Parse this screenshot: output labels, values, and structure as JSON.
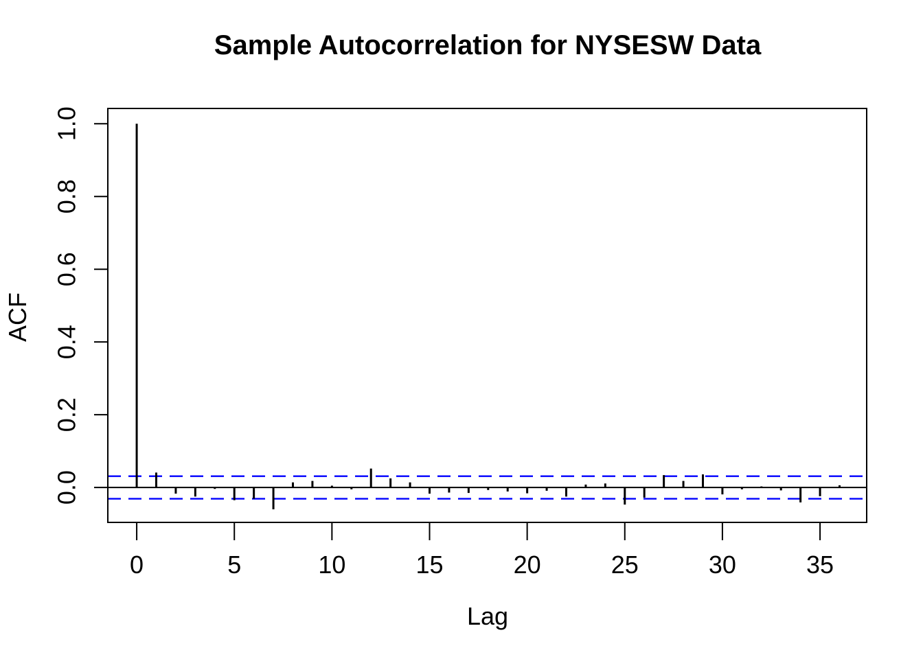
{
  "chart_data": {
    "type": "stem",
    "title": "Sample Autocorrelation for NYSESW Data",
    "xlabel": "Lag",
    "ylabel": "ACF",
    "x": [
      0,
      1,
      2,
      3,
      4,
      5,
      6,
      7,
      8,
      9,
      10,
      11,
      12,
      13,
      14,
      15,
      16,
      17,
      18,
      19,
      20,
      21,
      22,
      23,
      24,
      25,
      26,
      27,
      28,
      29,
      30,
      31,
      32,
      33,
      34,
      35,
      36
    ],
    "values": [
      1.0,
      0.041,
      -0.017,
      -0.025,
      -0.004,
      -0.035,
      -0.031,
      -0.06,
      0.014,
      0.018,
      0.005,
      -0.005,
      0.052,
      0.025,
      0.014,
      -0.017,
      -0.014,
      -0.015,
      -0.007,
      -0.011,
      -0.016,
      -0.009,
      -0.025,
      0.008,
      0.011,
      -0.047,
      -0.028,
      0.034,
      0.018,
      0.036,
      -0.019,
      -0.005,
      0.003,
      -0.008,
      -0.041,
      -0.024,
      0.006
    ],
    "confidence_bounds": {
      "upper": 0.031,
      "lower": -0.031,
      "line_style": "dashed"
    },
    "xticks": [
      0,
      5,
      10,
      15,
      20,
      25,
      30,
      35
    ],
    "xtick_labels": [
      "0",
      "5",
      "10",
      "15",
      "20",
      "25",
      "30",
      "35"
    ],
    "yticks": [
      0.0,
      0.2,
      0.4,
      0.6,
      0.8,
      1.0
    ],
    "ytick_labels": [
      "0.0",
      "0.2",
      "0.4",
      "0.6",
      "0.8",
      "1.0"
    ],
    "xlim": [
      -1.48,
      37.39
    ],
    "ylim": [
      -0.096,
      1.042
    ],
    "grid": false,
    "legend_position": "none",
    "colors": {
      "series": "#000000",
      "confidence": "#0000FF",
      "axis": "#000000",
      "background": "#FFFFFF"
    }
  }
}
